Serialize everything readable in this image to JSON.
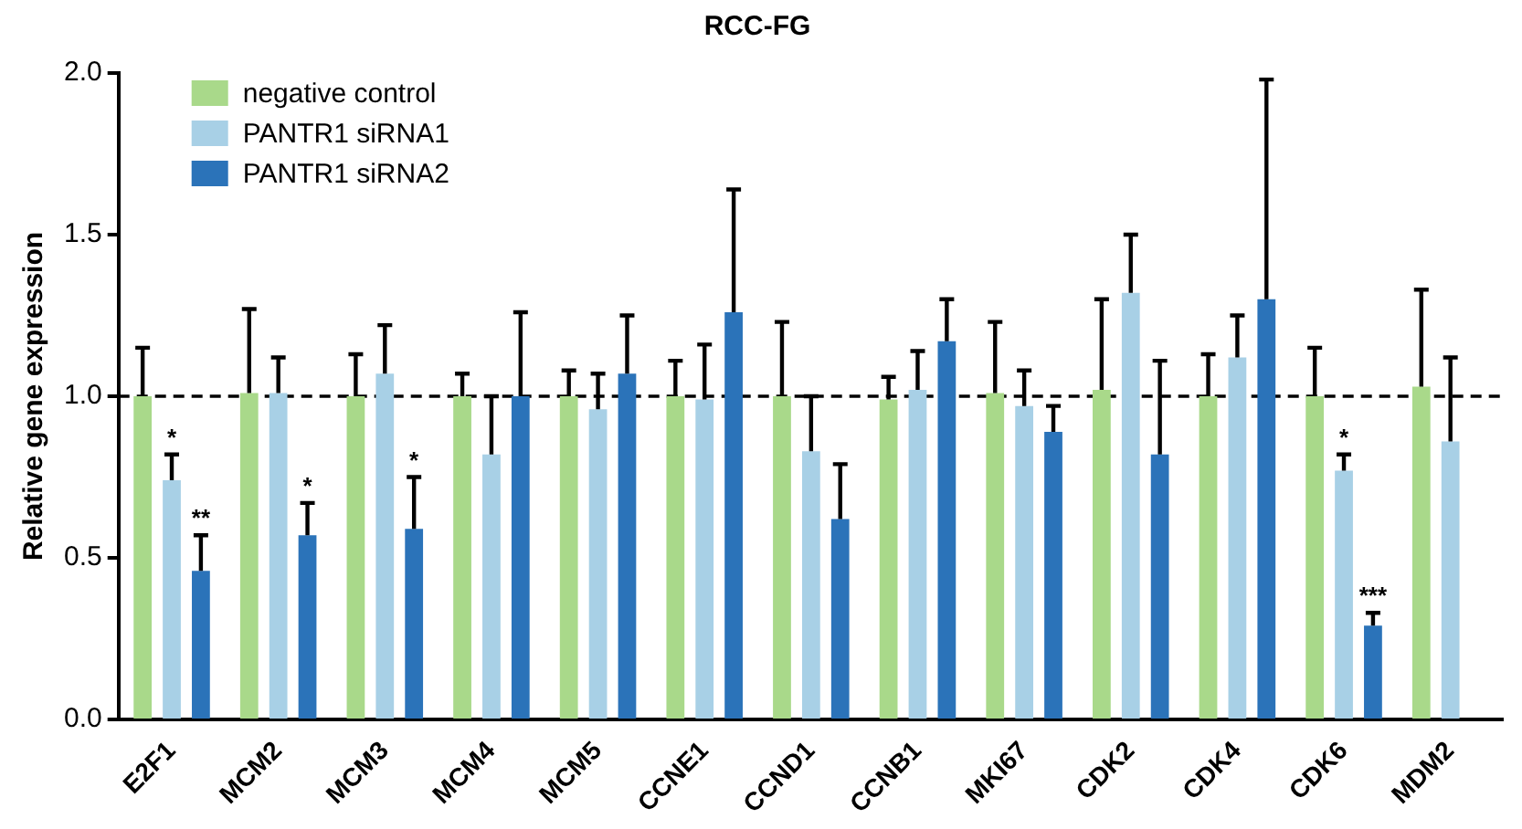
{
  "chart_data": {
    "type": "bar",
    "title": "RCC-FG",
    "ylabel": "Relative gene expression",
    "categories": [
      "E2F1",
      "MCM2",
      "MCM3",
      "MCM4",
      "MCM5",
      "CCNE1",
      "CCND1",
      "CCNB1",
      "MKI67",
      "CDK2",
      "CDK4",
      "CDK6",
      "MDM2"
    ],
    "series": [
      {
        "name": "negative control",
        "color": "#a9d98a",
        "values": [
          1.0,
          1.01,
          1.0,
          1.0,
          1.0,
          1.0,
          1.0,
          0.99,
          1.01,
          1.02,
          1.0,
          1.0,
          1.03
        ],
        "errors": [
          [
            1.0,
            1.15
          ],
          [
            1.01,
            1.27
          ],
          [
            1.0,
            1.13
          ],
          [
            1.0,
            1.07
          ],
          [
            1.0,
            1.08
          ],
          [
            1.0,
            1.11
          ],
          [
            1.0,
            1.23
          ],
          [
            0.99,
            1.06
          ],
          [
            1.01,
            1.23
          ],
          [
            1.02,
            1.3
          ],
          [
            1.0,
            1.13
          ],
          [
            1.0,
            1.15
          ],
          [
            1.03,
            1.33
          ]
        ]
      },
      {
        "name": "PANTR1 siRNA1",
        "color": "#a8d0e6",
        "values": [
          0.74,
          1.01,
          1.07,
          0.82,
          0.96,
          0.99,
          0.83,
          1.02,
          0.97,
          1.32,
          1.12,
          0.77,
          0.86
        ],
        "errors": [
          [
            0.74,
            0.82
          ],
          [
            1.01,
            1.12
          ],
          [
            1.07,
            1.22
          ],
          [
            0.82,
            1.0
          ],
          [
            0.96,
            1.07
          ],
          [
            0.99,
            1.16
          ],
          [
            0.83,
            1.0
          ],
          [
            1.02,
            1.14
          ],
          [
            0.97,
            1.08
          ],
          [
            1.32,
            1.5
          ],
          [
            1.12,
            1.25
          ],
          [
            0.77,
            0.82
          ],
          [
            0.86,
            1.12
          ]
        ]
      },
      {
        "name": "PANTR1 siRNA2",
        "color": "#2b73b9",
        "values": [
          0.46,
          0.57,
          0.59,
          1.0,
          1.07,
          1.26,
          0.62,
          1.17,
          0.89,
          0.82,
          1.3,
          0.29,
          null
        ],
        "errors": [
          [
            0.46,
            0.57
          ],
          [
            0.57,
            0.67
          ],
          [
            0.59,
            0.75
          ],
          [
            1.0,
            1.26
          ],
          [
            1.07,
            1.25
          ],
          [
            1.26,
            1.64
          ],
          [
            0.62,
            0.79
          ],
          [
            1.17,
            1.3
          ],
          [
            0.89,
            0.97
          ],
          [
            0.82,
            1.11
          ],
          [
            1.3,
            1.98
          ],
          [
            0.29,
            0.33
          ],
          null
        ]
      }
    ],
    "ylim": [
      0,
      2.0
    ],
    "yticks": [
      {
        "value": 0,
        "label": "0.0"
      },
      {
        "value": 0.5,
        "label": "0.5"
      },
      {
        "value": 1,
        "label": "1.0"
      },
      {
        "value": 1.5,
        "label": "1.5"
      },
      {
        "value": 2,
        "label": "2.0"
      }
    ],
    "grid": false,
    "legend": "top left",
    "ref_lines": [
      {
        "axis": "y",
        "value": 1,
        "line_style": "dashed"
      }
    ],
    "annotations": [
      {
        "text": "*",
        "x": "E2F1",
        "y": 0.82
      },
      {
        "text": "**",
        "x": "E2F1",
        "y": 0.57
      },
      {
        "text": "*",
        "x": "MCM2",
        "y": 0.67
      },
      {
        "text": "*",
        "x": "MCM3",
        "y": 0.75
      },
      {
        "text": "*",
        "x": "CDK6",
        "y": 0.82
      },
      {
        "text": "***",
        "x": "CDK6",
        "y": 0.33
      }
    ]
  }
}
